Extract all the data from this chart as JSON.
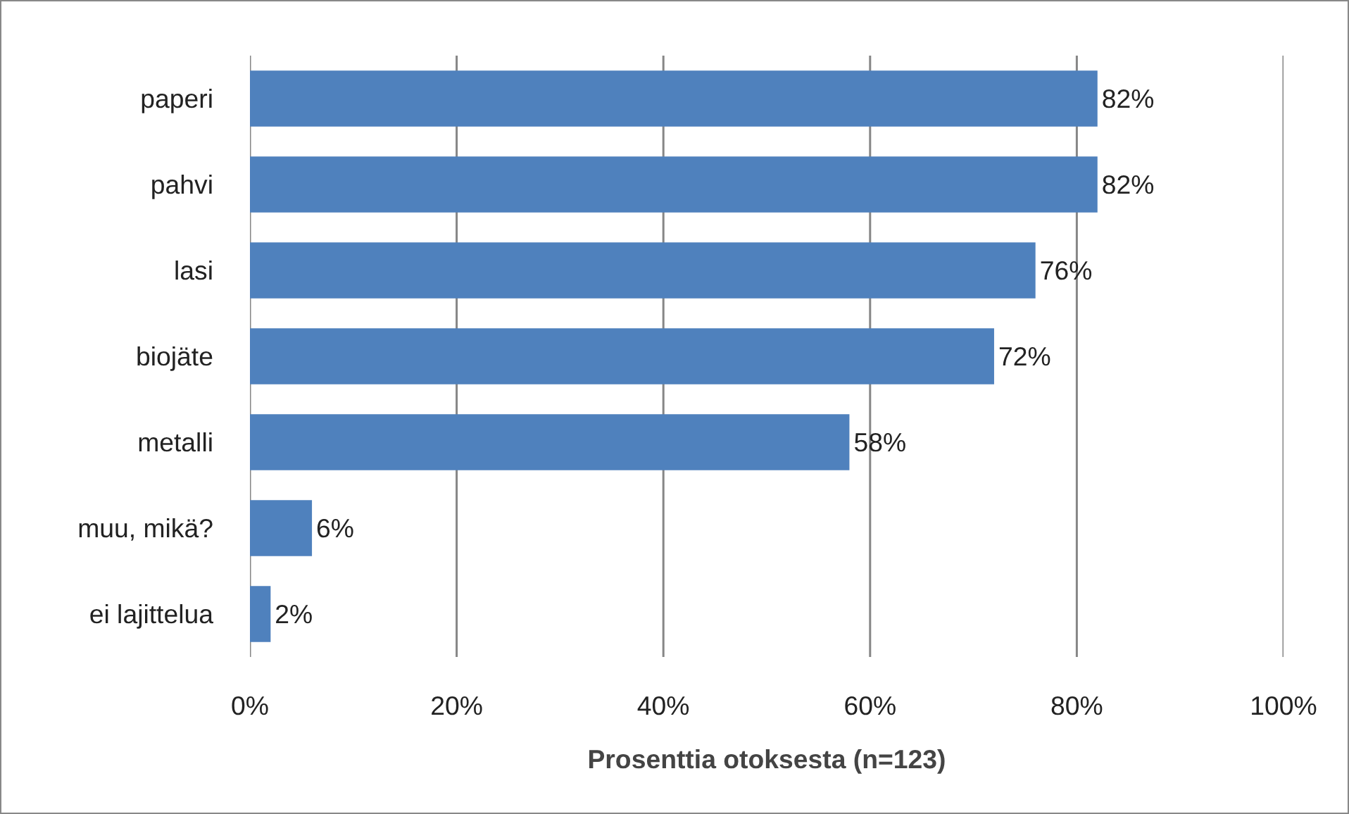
{
  "chart_data": {
    "type": "bar",
    "orientation": "horizontal",
    "xlabel": "Prosenttia otoksesta (n=123)",
    "categories": [
      "paperi",
      "pahvi",
      "lasi",
      "biojäte",
      "metalli",
      "muu, mikä?",
      "ei lajittelua"
    ],
    "values": [
      82,
      82,
      76,
      72,
      58,
      6,
      2
    ],
    "value_labels": [
      "82%",
      "82%",
      "76%",
      "72%",
      "58%",
      "6%",
      "2%"
    ],
    "color": "#4f81bd",
    "xlim": [
      0,
      100
    ],
    "xticks": [
      {
        "value": 0,
        "label": "0%"
      },
      {
        "value": 20,
        "label": "20%"
      },
      {
        "value": 40,
        "label": "40%"
      },
      {
        "value": 60,
        "label": "60%"
      },
      {
        "value": 80,
        "label": "80%"
      },
      {
        "value": 100,
        "label": "100%"
      }
    ],
    "grid": "x"
  }
}
